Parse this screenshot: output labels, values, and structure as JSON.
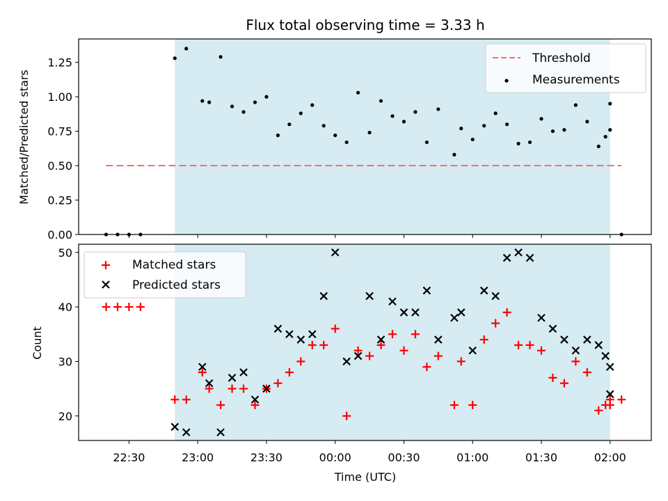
{
  "chart_data": [
    {
      "type": "scatter",
      "title": "Flux total observing time = 3.33 h",
      "ylabel": "Matched/Predicted stars",
      "xlabel": "",
      "ylim": [
        0,
        1.42
      ],
      "yticks": [
        "0.00",
        "0.25",
        "0.50",
        "0.75",
        "1.00",
        "1.25"
      ],
      "grid": false,
      "legend_placement": "top-right",
      "observing_window": {
        "start": "22:50",
        "end": "02:00",
        "color": "#add8e6"
      },
      "threshold": {
        "name": "Threshold",
        "value": 0.5,
        "from": "22:20",
        "to": "02:05",
        "color": "#ff6b6b"
      },
      "series": [
        {
          "name": "Measurements",
          "color": "#000000",
          "points": [
            [
              "22:20",
              0.0
            ],
            [
              "22:25",
              0.0
            ],
            [
              "22:30",
              0.0
            ],
            [
              "22:35",
              0.0
            ],
            [
              "22:50",
              1.28
            ],
            [
              "22:55",
              1.35
            ],
            [
              "23:02",
              0.97
            ],
            [
              "23:05",
              0.96
            ],
            [
              "23:10",
              1.29
            ],
            [
              "23:15",
              0.93
            ],
            [
              "23:20",
              0.89
            ],
            [
              "23:25",
              0.96
            ],
            [
              "23:30",
              1.0
            ],
            [
              "23:35",
              0.72
            ],
            [
              "23:40",
              0.8
            ],
            [
              "23:45",
              0.88
            ],
            [
              "23:50",
              0.94
            ],
            [
              "23:55",
              0.79
            ],
            [
              "00:00",
              0.72
            ],
            [
              "00:05",
              0.67
            ],
            [
              "00:10",
              1.03
            ],
            [
              "00:15",
              0.74
            ],
            [
              "00:20",
              0.97
            ],
            [
              "00:25",
              0.86
            ],
            [
              "00:30",
              0.82
            ],
            [
              "00:35",
              0.89
            ],
            [
              "00:40",
              0.67
            ],
            [
              "00:45",
              0.91
            ],
            [
              "00:52",
              0.58
            ],
            [
              "00:55",
              0.77
            ],
            [
              "01:00",
              0.69
            ],
            [
              "01:05",
              0.79
            ],
            [
              "01:10",
              0.88
            ],
            [
              "01:15",
              0.8
            ],
            [
              "01:20",
              0.66
            ],
            [
              "01:25",
              0.67
            ],
            [
              "01:30",
              0.84
            ],
            [
              "01:35",
              0.75
            ],
            [
              "01:40",
              0.76
            ],
            [
              "01:45",
              0.94
            ],
            [
              "01:50",
              0.82
            ],
            [
              "01:55",
              0.64
            ],
            [
              "01:58",
              0.71
            ],
            [
              "02:00",
              0.76
            ],
            [
              "02:00",
              0.95
            ],
            [
              "02:05",
              0.0
            ]
          ]
        }
      ]
    },
    {
      "type": "scatter",
      "title": "",
      "ylabel": "Count",
      "xlabel": "Time (UTC)",
      "ylim": [
        15.5,
        51.5
      ],
      "yticks": [
        "20",
        "30",
        "40",
        "50"
      ],
      "xticks": [
        "22:30",
        "23:00",
        "23:30",
        "00:00",
        "00:30",
        "01:00",
        "01:30",
        "02:00"
      ],
      "grid": false,
      "legend_placement": "top-left",
      "observing_window": {
        "start": "22:50",
        "end": "02:00",
        "color": "#add8e6"
      },
      "series": [
        {
          "name": "Matched stars",
          "marker": "+",
          "color": "#ff0000",
          "points": [
            [
              "22:20",
              40
            ],
            [
              "22:25",
              40
            ],
            [
              "22:30",
              40
            ],
            [
              "22:35",
              40
            ],
            [
              "22:50",
              23
            ],
            [
              "22:55",
              23
            ],
            [
              "23:02",
              28
            ],
            [
              "23:05",
              25
            ],
            [
              "23:10",
              22
            ],
            [
              "23:15",
              25
            ],
            [
              "23:20",
              25
            ],
            [
              "23:25",
              22
            ],
            [
              "23:30",
              25
            ],
            [
              "23:35",
              26
            ],
            [
              "23:40",
              28
            ],
            [
              "23:45",
              30
            ],
            [
              "23:50",
              33
            ],
            [
              "23:55",
              33
            ],
            [
              "00:00",
              36
            ],
            [
              "00:05",
              20
            ],
            [
              "00:10",
              32
            ],
            [
              "00:15",
              31
            ],
            [
              "00:20",
              33
            ],
            [
              "00:25",
              35
            ],
            [
              "00:30",
              32
            ],
            [
              "00:35",
              35
            ],
            [
              "00:40",
              29
            ],
            [
              "00:45",
              31
            ],
            [
              "00:52",
              22
            ],
            [
              "00:55",
              30
            ],
            [
              "01:00",
              22
            ],
            [
              "01:05",
              34
            ],
            [
              "01:10",
              37
            ],
            [
              "01:15",
              39
            ],
            [
              "01:20",
              33
            ],
            [
              "01:25",
              33
            ],
            [
              "01:30",
              32
            ],
            [
              "01:35",
              27
            ],
            [
              "01:40",
              26
            ],
            [
              "01:45",
              30
            ],
            [
              "01:50",
              28
            ],
            [
              "01:55",
              21
            ],
            [
              "01:58",
              22
            ],
            [
              "02:00",
              22
            ],
            [
              "02:00",
              23
            ],
            [
              "02:05",
              23
            ]
          ]
        },
        {
          "name": "Predicted stars",
          "marker": "x",
          "color": "#000000",
          "points": [
            [
              "22:50",
              18
            ],
            [
              "22:55",
              17
            ],
            [
              "23:02",
              29
            ],
            [
              "23:05",
              26
            ],
            [
              "23:10",
              17
            ],
            [
              "23:15",
              27
            ],
            [
              "23:20",
              28
            ],
            [
              "23:25",
              23
            ],
            [
              "23:30",
              25
            ],
            [
              "23:35",
              36
            ],
            [
              "23:40",
              35
            ],
            [
              "23:45",
              34
            ],
            [
              "23:50",
              35
            ],
            [
              "23:55",
              42
            ],
            [
              "00:00",
              50
            ],
            [
              "00:05",
              30
            ],
            [
              "00:10",
              31
            ],
            [
              "00:15",
              42
            ],
            [
              "00:20",
              34
            ],
            [
              "00:25",
              41
            ],
            [
              "00:30",
              39
            ],
            [
              "00:35",
              39
            ],
            [
              "00:40",
              43
            ],
            [
              "00:45",
              34
            ],
            [
              "00:52",
              38
            ],
            [
              "00:55",
              39
            ],
            [
              "01:00",
              32
            ],
            [
              "01:05",
              43
            ],
            [
              "01:10",
              42
            ],
            [
              "01:15",
              49
            ],
            [
              "01:20",
              50
            ],
            [
              "01:25",
              49
            ],
            [
              "01:30",
              38
            ],
            [
              "01:35",
              36
            ],
            [
              "01:40",
              34
            ],
            [
              "01:45",
              32
            ],
            [
              "01:50",
              34
            ],
            [
              "01:55",
              33
            ],
            [
              "01:58",
              31
            ],
            [
              "02:00",
              29
            ],
            [
              "02:00",
              24
            ]
          ]
        }
      ]
    }
  ]
}
